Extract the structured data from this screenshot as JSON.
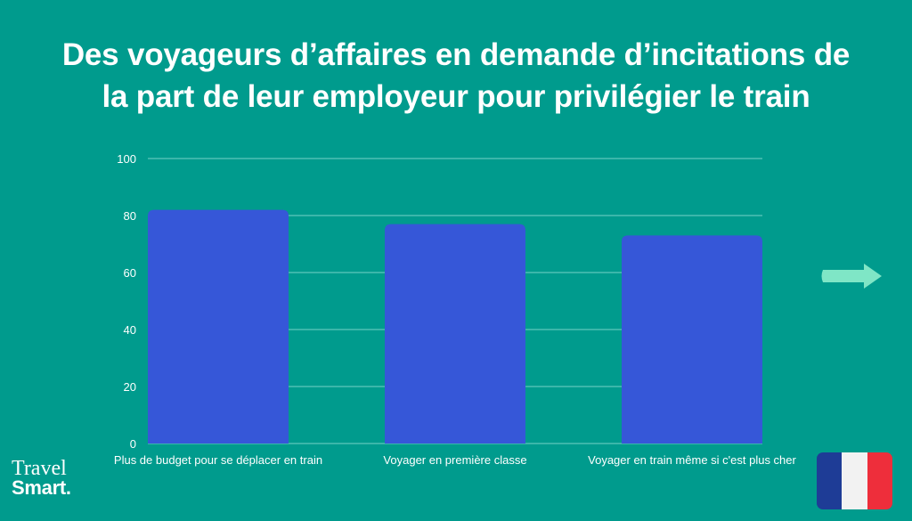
{
  "title_lines": [
    "Des voyageurs d’affaires en demande d’incitations de",
    "la part de leur employeur pour privilégier le train"
  ],
  "chart_data": {
    "type": "bar",
    "categories": [
      "Plus de budget pour se déplacer en train",
      "Voyager en première classe",
      "Voyager en train même si c'est plus cher"
    ],
    "values": [
      82,
      77,
      73
    ],
    "ylim": [
      0,
      100
    ],
    "yticks": [
      0,
      20,
      40,
      60,
      80,
      100
    ],
    "grid": true,
    "bar_color": "#3657d8",
    "grid_color": "#4fc0b3"
  },
  "brand": {
    "line1": "Travel",
    "line2": "Smart."
  },
  "colors": {
    "background": "#009b8d",
    "arrow": "#7fe6c6",
    "flag": [
      "#1e3c96",
      "#f2f2f2",
      "#ee2e3b"
    ]
  },
  "icons": {
    "next": "arrow-right-icon",
    "flag": "france-flag-icon"
  }
}
